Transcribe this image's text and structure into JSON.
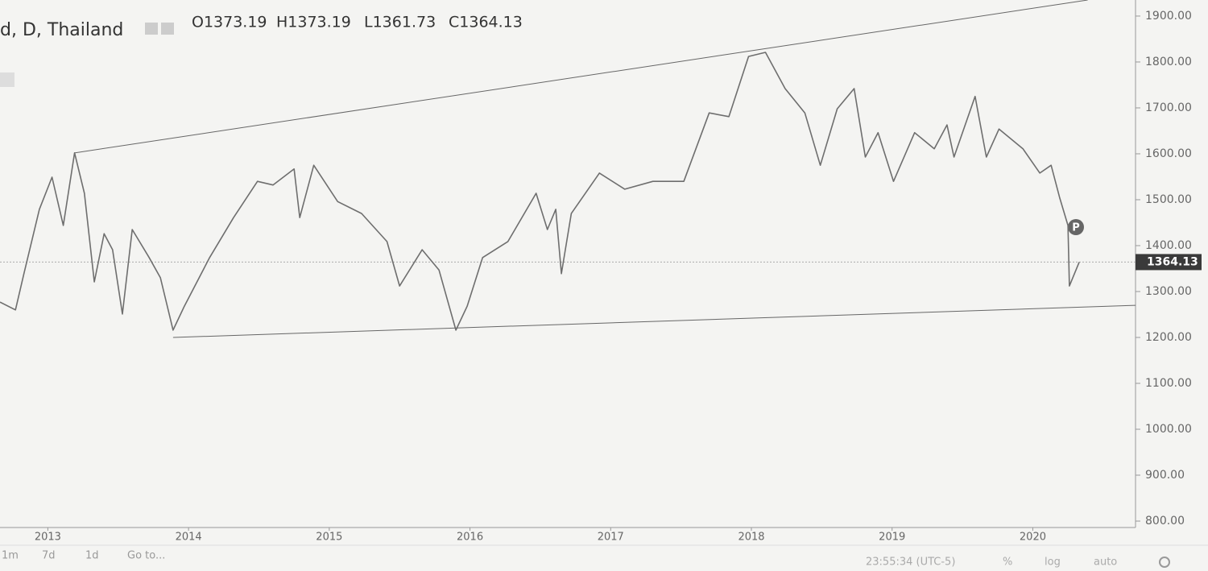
{
  "header": {
    "symbol": "d, D, Thailand",
    "ohlc": [
      "O1373.19",
      "H1373.19",
      "L1361.73",
      "C1364.13"
    ]
  },
  "toolbar": {
    "left": [
      "1m",
      "7d",
      "1d",
      "Go to..."
    ],
    "right": [
      "23:55:34 (UTC-5)",
      "%",
      "log",
      "auto"
    ]
  },
  "chart_data": {
    "type": "line",
    "color": "#6e6e6e",
    "x": [
      2012.66,
      2012.77,
      2012.83,
      2012.94,
      2013.03,
      2013.11,
      2013.19,
      2013.26,
      2013.33,
      2013.4,
      2013.46,
      2013.53,
      2013.6,
      2013.72,
      2013.8,
      2013.89,
      2013.97,
      2014.15,
      2014.32,
      2014.49,
      2014.6,
      2014.75,
      2014.79,
      2014.89,
      2015.06,
      2015.23,
      2015.41,
      2015.5,
      2015.66,
      2015.78,
      2015.9,
      2015.98,
      2016.09,
      2016.27,
      2016.47,
      2016.55,
      2016.61,
      2016.65,
      2016.72,
      2016.92,
      2017.1,
      2017.3,
      2017.52,
      2017.7,
      2017.84,
      2017.98,
      2018.1,
      2018.24,
      2018.38,
      2018.49,
      2018.61,
      2018.73,
      2018.81,
      2018.9,
      2019.01,
      2019.16,
      2019.3,
      2019.39,
      2019.44,
      2019.59,
      2019.67,
      2019.76,
      2019.93,
      2020.05,
      2020.13,
      2020.19,
      2020.25,
      2020.26,
      2020.33
    ],
    "values": [
      1277,
      1260,
      1339,
      1479,
      1549,
      1444,
      1602,
      1514,
      1321,
      1426,
      1391,
      1251,
      1435,
      1374,
      1330,
      1216,
      1268,
      1374,
      1461,
      1540,
      1532,
      1567,
      1461,
      1575,
      1496,
      1470,
      1409,
      1312,
      1391,
      1347,
      1216,
      1268,
      1374,
      1409,
      1514,
      1435,
      1479,
      1339,
      1470,
      1558,
      1523,
      1540,
      1540,
      1689,
      1681,
      1812,
      1821,
      1742,
      1689,
      1575,
      1698,
      1742,
      1593,
      1646,
      1540,
      1646,
      1611,
      1663,
      1593,
      1725,
      1593,
      1654,
      1611,
      1558,
      1575,
      1505,
      1444,
      1312,
      1364.13
    ],
    "xlim": [
      2012.66,
      2020.73
    ],
    "xticks": [
      2013,
      2014,
      2015,
      2016,
      2017,
      2018,
      2019,
      2020
    ],
    "ylim": [
      786,
      1935
    ],
    "yticks": [
      {
        "value": 800,
        "label": "800.00"
      },
      {
        "value": 900,
        "label": "900.00"
      },
      {
        "value": 1000,
        "label": "1000.00"
      },
      {
        "value": 1100,
        "label": "1100.00"
      },
      {
        "value": 1200,
        "label": "1200.00"
      },
      {
        "value": 1300,
        "label": "1300.00"
      },
      {
        "value": 1400,
        "label": "1400.00"
      },
      {
        "value": 1500,
        "label": "1500.00"
      },
      {
        "value": 1600,
        "label": "1600.00"
      },
      {
        "value": 1700,
        "label": "1700.00"
      },
      {
        "value": 1800,
        "label": "1800.00"
      },
      {
        "value": 1900,
        "label": "1900.00"
      }
    ],
    "trend_lines": [
      {
        "x": [
          2013.19,
          2020.39
        ],
        "values": [
          1602,
          1935
        ]
      },
      {
        "x": [
          2013.89,
          2020.73
        ],
        "values": [
          1200,
          1270
        ]
      }
    ]
  }
}
